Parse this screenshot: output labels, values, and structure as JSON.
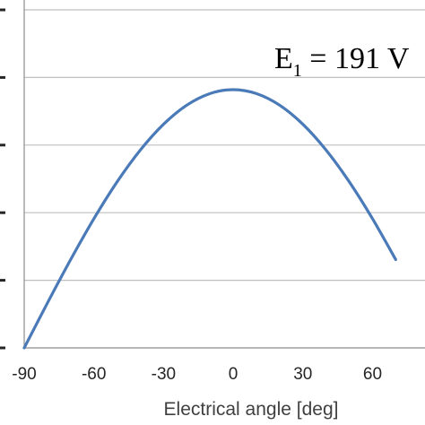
{
  "chart_data": {
    "type": "line",
    "title": "",
    "xlabel": "Electrical angle [deg]",
    "ylabel": "",
    "xlim": [
      -90,
      60
    ],
    "ylim": [
      0,
      250
    ],
    "x_ticks": [
      "-90",
      "-60",
      "-30",
      "0",
      "30",
      "60"
    ],
    "grid": "horizontal",
    "legend": "none",
    "annotation": {
      "main": "E",
      "subscript": "1",
      "rest": " = 191 V"
    },
    "series": [
      {
        "color": "#4a7ab8",
        "x": [
          -90,
          -80,
          -70,
          -60,
          -50,
          -40,
          -30,
          -20,
          -10,
          0,
          10,
          20,
          30,
          40,
          50,
          60,
          70
        ],
        "y": [
          0,
          33.2,
          65.3,
          95.5,
          122.8,
          146.3,
          165.4,
          179.5,
          188.1,
          191.0,
          188.1,
          179.5,
          165.4,
          146.3,
          122.8,
          95.5,
          65.3
        ]
      }
    ]
  }
}
